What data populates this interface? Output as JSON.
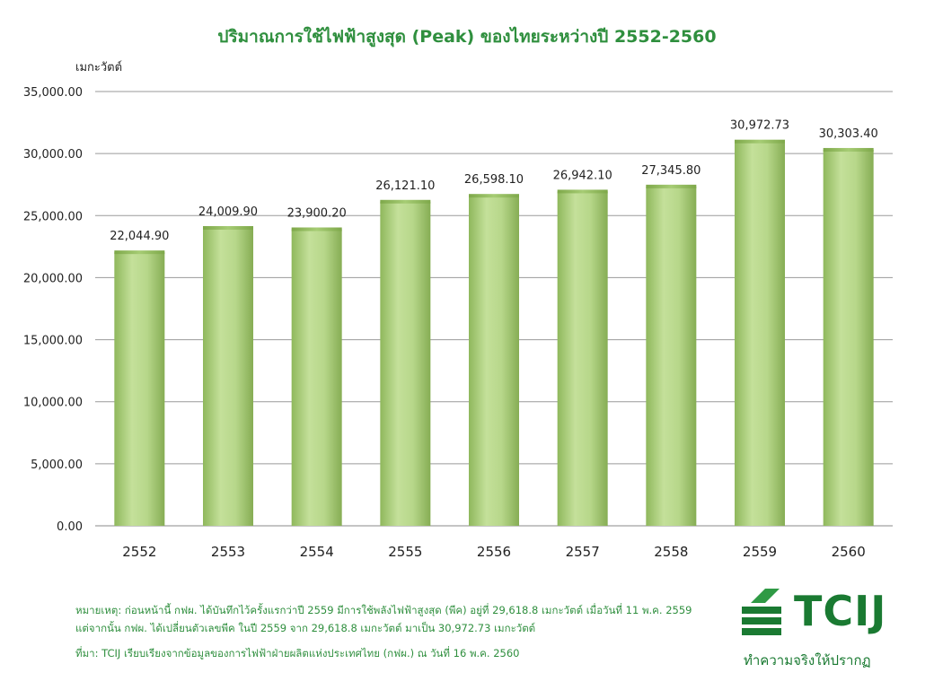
{
  "chart_data": {
    "type": "bar",
    "title": "ปริมาณการใช้ไฟฟ้าสูงสุด (Peak) ของไทยระหว่างปี 2552-2560",
    "ylabel": "เมกะวัตต์",
    "xlabel": "",
    "categories": [
      "2552",
      "2553",
      "2554",
      "2555",
      "2556",
      "2557",
      "2558",
      "2559",
      "2560"
    ],
    "values": [
      22044.9,
      24009.9,
      23900.2,
      26121.1,
      26598.1,
      26942.1,
      27345.8,
      30972.73,
      30303.4
    ],
    "value_labels": [
      "22,044.90",
      "24,009.90",
      "23,900.20",
      "26,121.10",
      "26,598.10",
      "26,942.10",
      "27,345.80",
      "30,972.73",
      "30,303.40"
    ],
    "ylim": [
      0,
      35000
    ],
    "yticks": [
      0,
      5000,
      10000,
      15000,
      20000,
      25000,
      30000,
      35000
    ],
    "ytick_labels": [
      "0.00",
      "5,000.00",
      "10,000.00",
      "15,000.00",
      "20,000.00",
      "25,000.00",
      "30,000.00",
      "35,000.00"
    ],
    "grid": true,
    "legend": "none",
    "bar_color": "#a9cc7a"
  },
  "notes": {
    "line1": "หมายเหตุ: ก่อนหน้านี้ กฟผ. ได้บันทึกไว้ครั้งแรกว่าปี 2559 มีการใช้พลังไฟฟ้าสูงสุด (พีค) อยู่ที่ 29,618.8 เมกะวัตต์ เมื่อวันที่ 11 พ.ค. 2559",
    "line2": "แต่จากนั้น กฟผ. ได้เปลี่ยนตัวเลขพีค ในปี 2559 จาก 29,618.8 เมกะวัตต์ มาเป็น 30,972.73 เมกะวัตต์",
    "source": "ที่มา: TCIJ เรียบเรียงจากข้อมูลของการไฟฟ้าฝ่ายผลิตแห่งประเทศไทย (กฟผ.) ณ วันที่ 16 พ.ค. 2560"
  },
  "logo": {
    "name": "TCIJ",
    "tagline": "ทำความจริงให้ปรากฏ",
    "color": "#1a7a32"
  }
}
